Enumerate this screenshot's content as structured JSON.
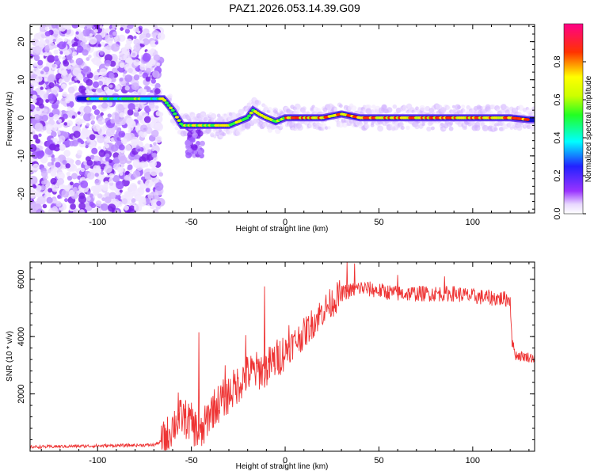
{
  "title": "PAZ1.2026.053.14.39.G09",
  "chart_data": [
    {
      "type": "heatmap",
      "xlabel": "Height of straight line (km)",
      "ylabel": "Frequency (Hz)",
      "xlim": [
        -136,
        133
      ],
      "ylim": [
        -25,
        24.5
      ],
      "xticks": [
        -100,
        -50,
        0,
        50,
        100
      ],
      "yticks": [
        -20,
        -10,
        0,
        10,
        20
      ],
      "ridge": {
        "x": [
          -100,
          -90,
          -80,
          -70,
          -65,
          -60,
          -55,
          -52,
          -48,
          -45,
          -40,
          -30,
          -25,
          -20,
          -17,
          -14,
          -10,
          -5,
          0,
          10,
          20,
          30,
          40,
          50,
          60,
          70,
          80,
          90,
          100,
          110,
          120,
          130
        ],
        "y": [
          5,
          5,
          5,
          5,
          5,
          2,
          -2,
          -2,
          -2,
          -2,
          -2,
          -2,
          -1,
          0,
          2,
          1,
          0,
          -1,
          0,
          0,
          0,
          1,
          0,
          0,
          0,
          0,
          0,
          0,
          0,
          0,
          0,
          -0.5
        ]
      },
      "colorbar": {
        "label": "Normalized spectral amplitude",
        "range": [
          0,
          1
        ],
        "ticks": [
          "0.0",
          "0.2",
          "0.4",
          "0.6",
          "0.8"
        ]
      }
    },
    {
      "type": "line",
      "xlabel": "Height of straight line (km)",
      "ylabel": "SNR (10 * v/v)",
      "xlim": [
        -136,
        133
      ],
      "ylim": [
        0,
        6600
      ],
      "xticks": [
        -100,
        -50,
        0,
        50,
        100
      ],
      "yticks": [
        2000,
        4000,
        6000
      ],
      "color": "#ee3333",
      "trend": {
        "x": [
          -136,
          -70,
          -64,
          -60,
          -55,
          -50,
          -45,
          -40,
          -35,
          -30,
          -20,
          -10,
          0,
          10,
          20,
          30,
          40,
          50,
          60,
          70,
          80,
          90,
          100,
          110,
          120,
          121,
          123,
          133
        ],
        "y": [
          150,
          220,
          400,
          900,
          1200,
          1000,
          500,
          1400,
          1700,
          2000,
          2700,
          2900,
          3500,
          4100,
          4900,
          5500,
          5700,
          5600,
          5500,
          5500,
          5500,
          5500,
          5400,
          5350,
          5300,
          3800,
          3350,
          3250
        ]
      },
      "spikes": [
        {
          "x": -57,
          "y": 2050
        },
        {
          "x": -46,
          "y": 4150
        },
        {
          "x": -32,
          "y": 3000
        },
        {
          "x": -21,
          "y": 4050
        },
        {
          "x": -11,
          "y": 5750
        },
        {
          "x": 2,
          "y": 4400
        },
        {
          "x": 33,
          "y": 6600
        },
        {
          "x": 37,
          "y": 6550
        },
        {
          "x": 60,
          "y": 6150
        },
        {
          "x": 85,
          "y": 6100
        }
      ]
    }
  ]
}
